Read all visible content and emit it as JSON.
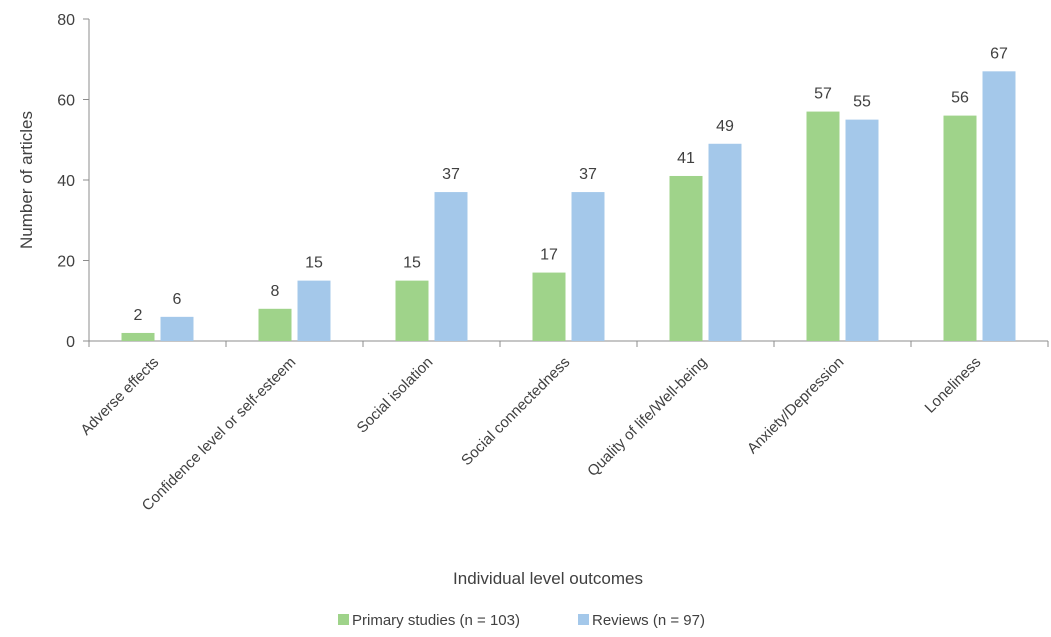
{
  "chart_data": {
    "type": "bar",
    "categories": [
      "Adverse effects",
      "Confidence level or self-esteem",
      "Social isolation",
      "Social connectedness",
      "Quality of life/Well-being",
      "Anxiety/Depression",
      "Loneliness"
    ],
    "series": [
      {
        "name": "Primary studies (n = 103)",
        "values": [
          2,
          8,
          15,
          17,
          41,
          57,
          56
        ],
        "color": "#9fd38a"
      },
      {
        "name": "Reviews (n = 97)",
        "values": [
          6,
          15,
          37,
          37,
          49,
          55,
          67
        ],
        "color": "#a4c8ea"
      }
    ],
    "xlabel": "Individual level outcomes",
    "ylabel": "Number of articles",
    "ylim": [
      0,
      80
    ],
    "yticks": [
      0,
      20,
      40,
      60,
      80
    ],
    "grid": false,
    "legend": "bottom-center",
    "data_labels": true
  }
}
